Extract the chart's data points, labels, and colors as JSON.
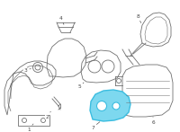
{
  "background_color": "#ffffff",
  "line_color": "#707070",
  "highlight_color": "#3bbde0",
  "highlight_fill": "#7dd8ef",
  "label_color": "#444444",
  "figsize": [
    2.0,
    1.47
  ],
  "dpi": 100,
  "lw": 0.6
}
